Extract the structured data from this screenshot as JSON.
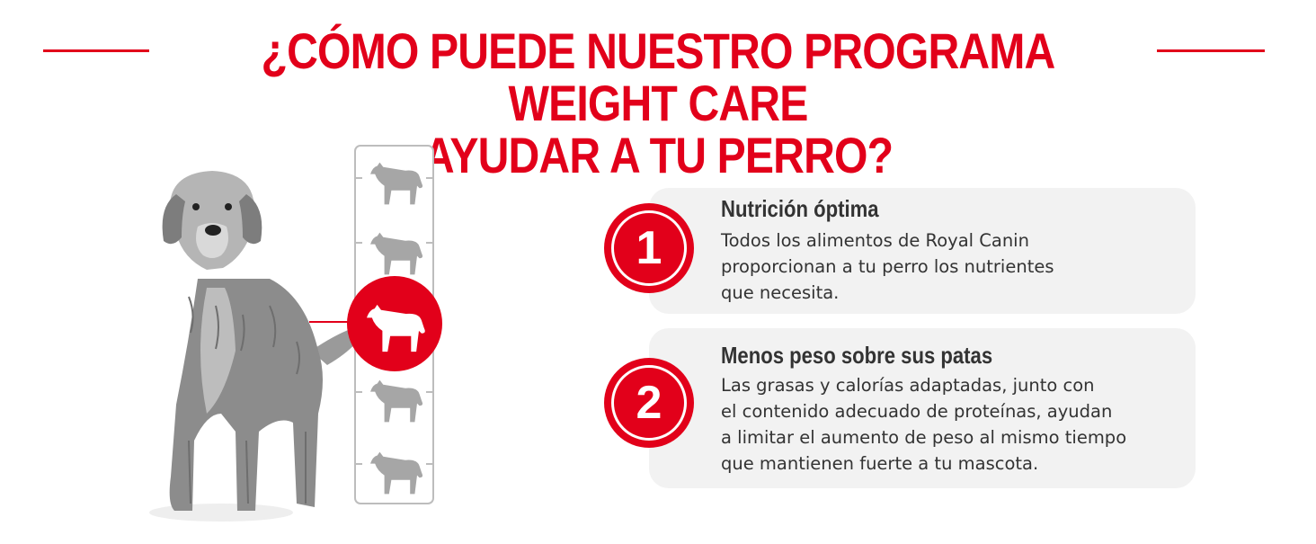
{
  "heading": {
    "line1": "¿CÓMO PUEDE NUESTRO PROGRAMA WEIGHT CARE",
    "line2": "AYUDAR A TU PERRO?"
  },
  "colors": {
    "brand_red": "#e2001a",
    "card_bg": "#f2f2f2",
    "text_dark": "#333333",
    "scale_grey": "#a6a6a6"
  },
  "weight_scale": {
    "levels": 5,
    "active_level": 3,
    "icon": "dog-silhouette-icon"
  },
  "benefits": [
    {
      "number": "1",
      "title": "Nutrición óptima",
      "lines": [
        "Todos los alimentos de Royal Canin",
        "proporcionan a tu perro los nutrientes",
        "que necesita."
      ]
    },
    {
      "number": "2",
      "title": "Menos peso sobre sus patas",
      "lines": [
        "Las grasas y calorías adaptadas, junto con",
        "el contenido adecuado de proteínas, ayudan",
        "a limitar el aumento de peso al mismo tiempo",
        "que mantienen fuerte a tu mascota."
      ]
    }
  ]
}
